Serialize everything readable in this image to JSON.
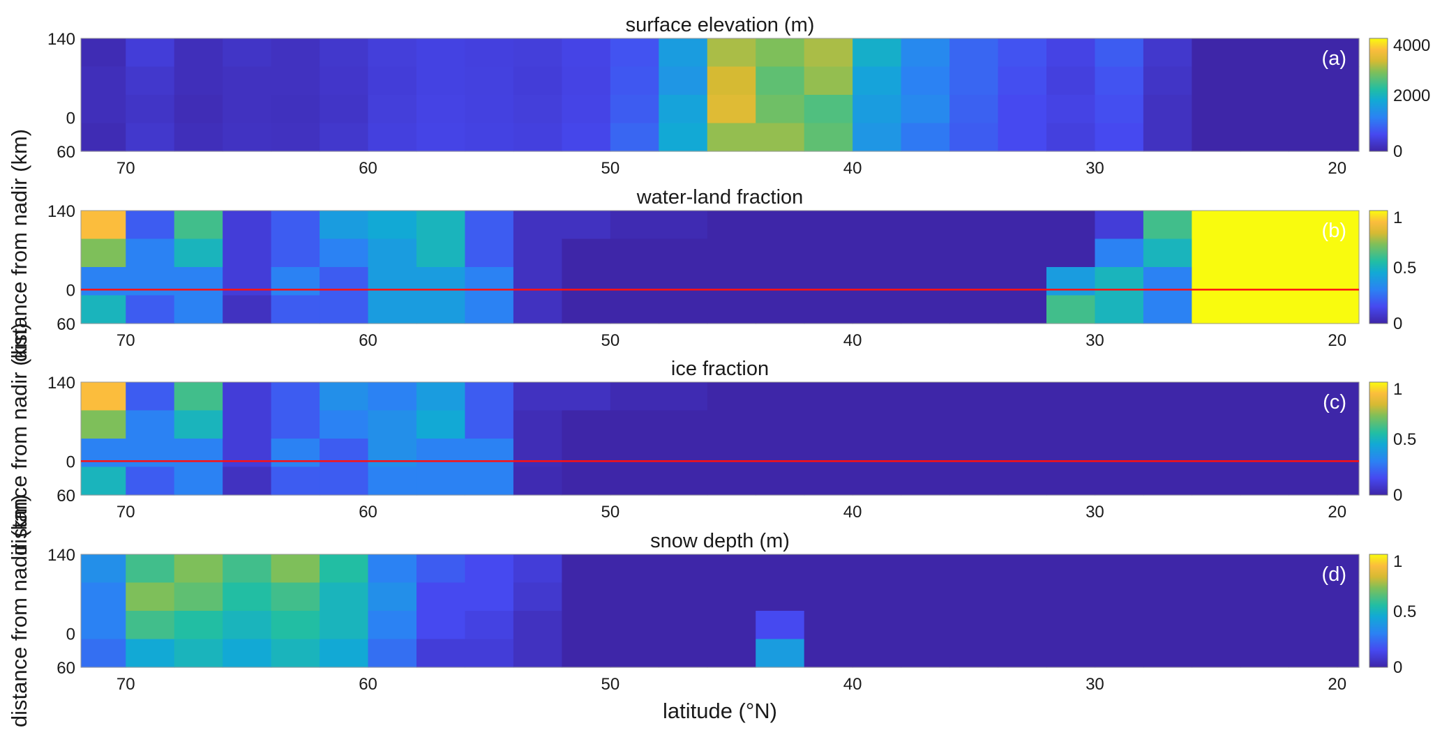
{
  "xlabel": "latitude (°N)",
  "ylabel": "distance from nadir (km)",
  "chart_data": [
    {
      "type": "heatmap",
      "title": "surface elevation (m)",
      "panel_label": "(a)",
      "x_range": [
        71.85,
        19.1
      ],
      "x_ticks": [
        70,
        60,
        50,
        40,
        30,
        20
      ],
      "x_ticklabels": [
        "70",
        "60",
        "50",
        "40",
        "30",
        "20"
      ],
      "y_range": [
        140,
        -60
      ],
      "y_ticks": [
        140,
        0,
        -60
      ],
      "y_ticklabels": [
        "140",
        "0",
        "60"
      ],
      "x_bin_centers": [
        71,
        69,
        67,
        65,
        63,
        61,
        59,
        57,
        55,
        53,
        51,
        49,
        47,
        45,
        43,
        41,
        39,
        37,
        35,
        33,
        31,
        29,
        27,
        25,
        23,
        21,
        19
      ],
      "y_bin_centers": [
        115,
        65,
        15,
        -35
      ],
      "values": [
        [
          100,
          400,
          150,
          250,
          200,
          300,
          420,
          480,
          450,
          420,
          520,
          700,
          1600,
          3000,
          2800,
          3000,
          1900,
          1300,
          900,
          700,
          500,
          800,
          300,
          0,
          0,
          0,
          0
        ],
        [
          150,
          300,
          150,
          200,
          200,
          280,
          400,
          480,
          460,
          400,
          500,
          750,
          1500,
          3200,
          2600,
          2900,
          1700,
          1200,
          900,
          650,
          450,
          700,
          250,
          0,
          0,
          0,
          0
        ],
        [
          150,
          250,
          120,
          200,
          180,
          260,
          420,
          500,
          470,
          420,
          520,
          800,
          1700,
          3300,
          2700,
          2500,
          1600,
          1300,
          850,
          600,
          500,
          650,
          200,
          0,
          0,
          0,
          0
        ],
        [
          100,
          300,
          150,
          220,
          200,
          300,
          450,
          520,
          480,
          450,
          550,
          900,
          1800,
          2900,
          2900,
          2600,
          1500,
          1100,
          800,
          600,
          450,
          600,
          200,
          0,
          0,
          0,
          0
        ]
      ],
      "clim": [
        0,
        4000
      ],
      "colorbar_ticks": [
        0,
        2000,
        4000
      ],
      "colorbar_ticklabels": [
        "0",
        "2000",
        "4000"
      ],
      "reference_line": null
    },
    {
      "type": "heatmap",
      "title": "water-land fraction",
      "panel_label": "(b)",
      "x_range": [
        71.85,
        19.1
      ],
      "x_ticks": [
        70,
        60,
        50,
        40,
        30,
        20
      ],
      "x_ticklabels": [
        "70",
        "60",
        "50",
        "40",
        "30",
        "20"
      ],
      "y_range": [
        140,
        -60
      ],
      "y_ticks": [
        140,
        0,
        -60
      ],
      "y_ticklabels": [
        "140",
        "0",
        "60"
      ],
      "x_bin_centers": [
        71,
        69,
        67,
        65,
        63,
        61,
        59,
        57,
        55,
        53,
        51,
        49,
        47,
        45,
        43,
        41,
        39,
        37,
        35,
        33,
        31,
        29,
        27,
        25,
        23,
        21,
        19
      ],
      "y_bin_centers": [
        115,
        65,
        15,
        -35
      ],
      "values": [
        [
          0.9,
          0.2,
          0.6,
          0.1,
          0.2,
          0.4,
          0.45,
          0.5,
          0.2,
          0.05,
          0.05,
          0.02,
          0.02,
          0,
          0,
          0,
          0,
          0,
          0,
          0,
          0,
          0.1,
          0.6,
          1,
          1,
          1,
          1
        ],
        [
          0.7,
          0.3,
          0.5,
          0.1,
          0.2,
          0.3,
          0.4,
          0.5,
          0.2,
          0.05,
          0,
          0,
          0,
          0,
          0,
          0,
          0,
          0,
          0,
          0,
          0,
          0.3,
          0.5,
          1,
          1,
          1,
          1
        ],
        [
          0.3,
          0.3,
          0.3,
          0.1,
          0.3,
          0.2,
          0.4,
          0.4,
          0.3,
          0.05,
          0,
          0,
          0,
          0,
          0,
          0,
          0,
          0,
          0,
          0,
          0.4,
          0.5,
          0.3,
          1,
          1,
          1,
          1
        ],
        [
          0.5,
          0.2,
          0.3,
          0.05,
          0.2,
          0.2,
          0.4,
          0.4,
          0.3,
          0.05,
          0,
          0,
          0,
          0,
          0,
          0,
          0,
          0,
          0,
          0,
          0.6,
          0.5,
          0.3,
          1,
          1,
          1,
          1
        ]
      ],
      "clim": [
        0,
        1
      ],
      "colorbar_ticks": [
        0,
        0.5,
        1
      ],
      "colorbar_ticklabels": [
        "0",
        "0.5",
        "1"
      ],
      "reference_line": 0
    },
    {
      "type": "heatmap",
      "title": "ice fraction",
      "panel_label": "(c)",
      "x_range": [
        71.85,
        19.1
      ],
      "x_ticks": [
        70,
        60,
        50,
        40,
        30,
        20
      ],
      "x_ticklabels": [
        "70",
        "60",
        "50",
        "40",
        "30",
        "20"
      ],
      "y_range": [
        140,
        -60
      ],
      "y_ticks": [
        140,
        0,
        -60
      ],
      "y_ticklabels": [
        "140",
        "0",
        "60"
      ],
      "x_bin_centers": [
        71,
        69,
        67,
        65,
        63,
        61,
        59,
        57,
        55,
        53,
        51,
        49,
        47,
        45,
        43,
        41,
        39,
        37,
        35,
        33,
        31,
        29,
        27,
        25,
        23,
        21,
        19
      ],
      "y_bin_centers": [
        115,
        65,
        15,
        -35
      ],
      "values": [
        [
          0.9,
          0.2,
          0.6,
          0.1,
          0.2,
          0.35,
          0.3,
          0.4,
          0.2,
          0.05,
          0.05,
          0.02,
          0.02,
          0,
          0,
          0,
          0,
          0,
          0,
          0,
          0,
          0,
          0,
          0,
          0,
          0,
          0
        ],
        [
          0.7,
          0.3,
          0.5,
          0.1,
          0.2,
          0.3,
          0.35,
          0.45,
          0.2,
          0.03,
          0,
          0,
          0,
          0,
          0,
          0,
          0,
          0,
          0,
          0,
          0,
          0,
          0,
          0,
          0,
          0,
          0
        ],
        [
          0.3,
          0.3,
          0.3,
          0.1,
          0.3,
          0.2,
          0.35,
          0.3,
          0.3,
          0.03,
          0,
          0,
          0,
          0,
          0,
          0,
          0,
          0,
          0,
          0,
          0,
          0,
          0,
          0,
          0,
          0,
          0
        ],
        [
          0.5,
          0.2,
          0.3,
          0.05,
          0.2,
          0.2,
          0.3,
          0.3,
          0.3,
          0.02,
          0,
          0,
          0,
          0,
          0,
          0,
          0,
          0,
          0,
          0,
          0,
          0,
          0,
          0,
          0,
          0,
          0
        ]
      ],
      "clim": [
        0,
        1
      ],
      "colorbar_ticks": [
        0,
        0.5,
        1
      ],
      "colorbar_ticklabels": [
        "0",
        "0.5",
        "1"
      ],
      "reference_line": 0
    },
    {
      "type": "heatmap",
      "title": "snow depth (m)",
      "panel_label": "(d)",
      "x_range": [
        71.85,
        19.1
      ],
      "x_ticks": [
        70,
        60,
        50,
        40,
        30,
        20
      ],
      "x_ticklabels": [
        "70",
        "60",
        "50",
        "40",
        "30",
        "20"
      ],
      "y_range": [
        140,
        -60
      ],
      "y_ticks": [
        140,
        0,
        -60
      ],
      "y_ticklabels": [
        "140",
        "0",
        "60"
      ],
      "x_bin_centers": [
        71,
        69,
        67,
        65,
        63,
        61,
        59,
        57,
        55,
        53,
        51,
        49,
        47,
        45,
        43,
        41,
        39,
        37,
        35,
        33,
        31,
        29,
        27,
        25,
        23,
        21,
        19
      ],
      "y_bin_centers": [
        115,
        65,
        15,
        -35
      ],
      "values": [
        [
          0.35,
          0.6,
          0.7,
          0.6,
          0.7,
          0.55,
          0.3,
          0.2,
          0.15,
          0.1,
          0,
          0,
          0,
          0,
          0,
          0,
          0,
          0,
          0,
          0,
          0,
          0,
          0,
          0,
          0,
          0,
          0
        ],
        [
          0.3,
          0.7,
          0.65,
          0.55,
          0.6,
          0.5,
          0.35,
          0.15,
          0.15,
          0.08,
          0,
          0,
          0,
          0,
          0,
          0,
          0,
          0,
          0,
          0,
          0,
          0,
          0,
          0,
          0,
          0,
          0
        ],
        [
          0.3,
          0.6,
          0.55,
          0.5,
          0.55,
          0.5,
          0.3,
          0.15,
          0.12,
          0.05,
          0,
          0,
          0,
          0,
          0.15,
          0,
          0,
          0,
          0,
          0,
          0,
          0,
          0,
          0,
          0,
          0,
          0
        ],
        [
          0.25,
          0.45,
          0.5,
          0.45,
          0.5,
          0.45,
          0.25,
          0.1,
          0.1,
          0.05,
          0,
          0,
          0,
          0,
          0.4,
          0,
          0,
          0,
          0,
          0,
          0,
          0,
          0,
          0,
          0,
          0,
          0
        ]
      ],
      "clim": [
        0,
        1
      ],
      "colorbar_ticks": [
        0,
        0.5,
        1
      ],
      "colorbar_ticklabels": [
        "0",
        "0.5",
        "1"
      ],
      "reference_line": null
    }
  ]
}
